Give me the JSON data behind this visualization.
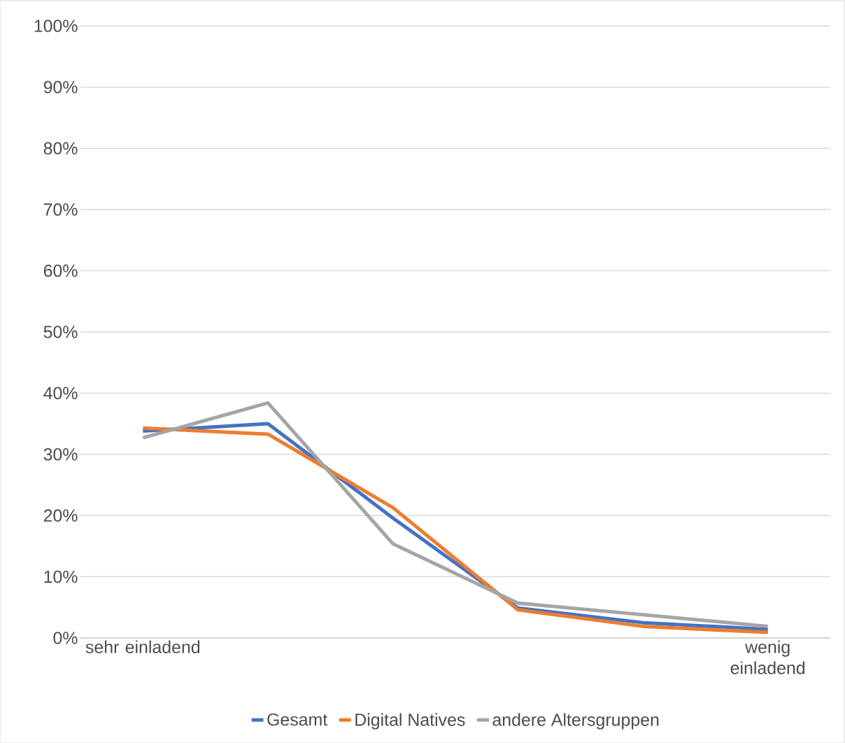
{
  "chart_data": {
    "type": "line",
    "categories": [
      "sehr einladend",
      null,
      null,
      null,
      null,
      "wenig einladend"
    ],
    "series": [
      {
        "name": "Gesamt",
        "color": "#4472c4",
        "values": [
          33.8,
          35.0,
          19.6,
          4.9,
          2.5,
          1.4
        ]
      },
      {
        "name": "Digital Natives",
        "color": "#ed7d31",
        "values": [
          34.3,
          33.3,
          21.3,
          4.6,
          1.9,
          0.9
        ]
      },
      {
        "name": "andere Altersgruppen",
        "color": "#a5a5a5",
        "values": [
          32.7,
          38.4,
          15.4,
          5.7,
          3.8,
          1.9
        ]
      }
    ],
    "ylim": [
      0,
      100
    ],
    "yticks": [
      {
        "value": 0,
        "label": "0%"
      },
      {
        "value": 10,
        "label": "10%"
      },
      {
        "value": 20,
        "label": "20%"
      },
      {
        "value": 30,
        "label": "30%"
      },
      {
        "value": 40,
        "label": "40%"
      },
      {
        "value": 50,
        "label": "50%"
      },
      {
        "value": 60,
        "label": "60%"
      },
      {
        "value": 70,
        "label": "70%"
      },
      {
        "value": 80,
        "label": "80%"
      },
      {
        "value": 90,
        "label": "90%"
      },
      {
        "value": 100,
        "label": "100%"
      }
    ],
    "grid": "y",
    "legend": "bottom",
    "marker": "none",
    "line_style": "solid"
  }
}
